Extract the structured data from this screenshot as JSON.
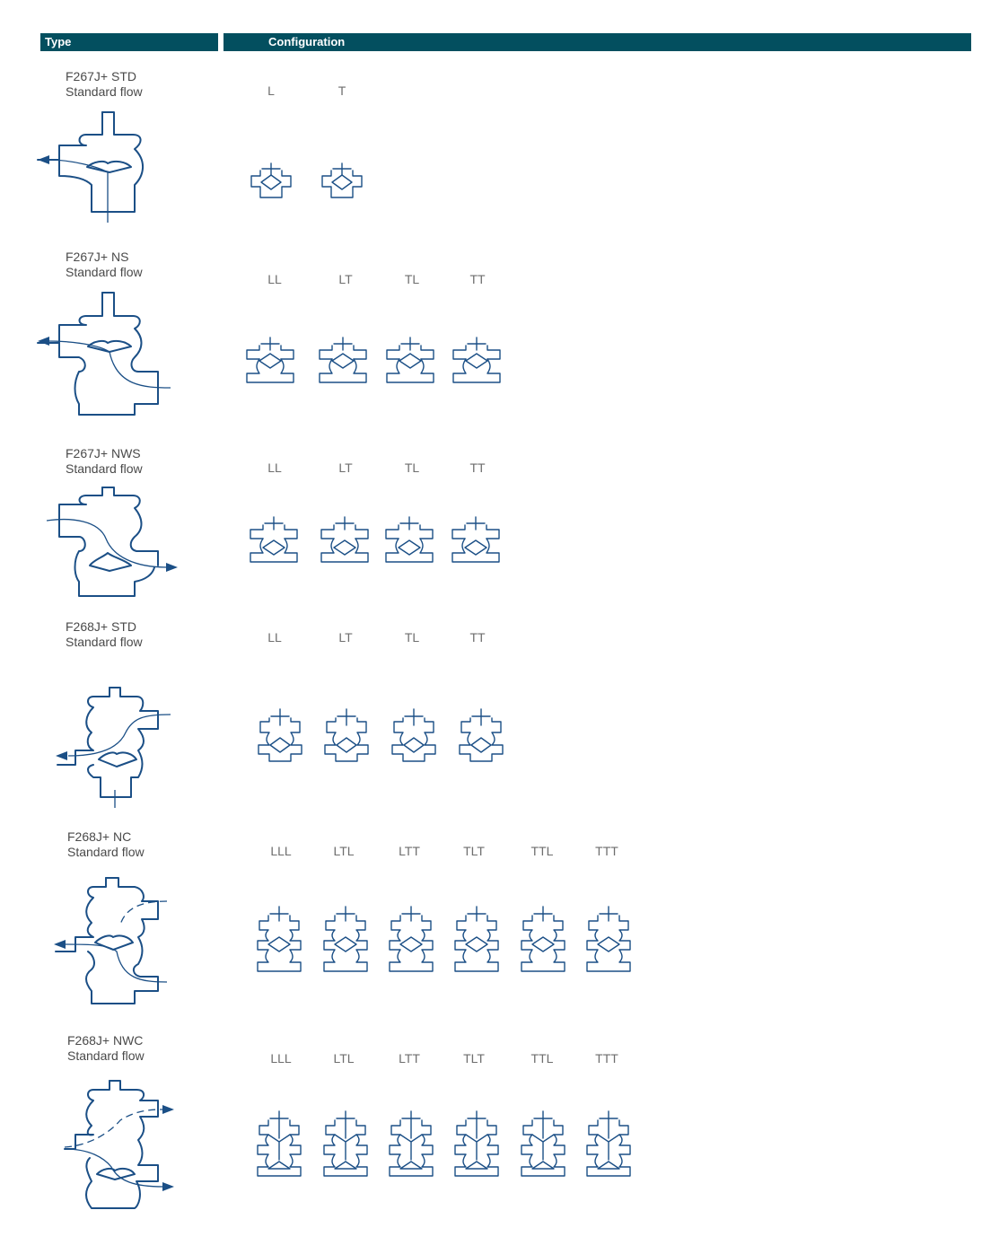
{
  "header": {
    "type": "Type",
    "configuration": "Configuration"
  },
  "colors": {
    "header_bg": "#034f5f",
    "line": "#1b4f86"
  },
  "rows": [
    {
      "model": "F267J+ STD",
      "flow": "Standard flow",
      "configs": [
        "L",
        "T"
      ]
    },
    {
      "model": "F267J+ NS",
      "flow": "Standard flow",
      "configs": [
        "LL",
        "LT",
        "TL",
        "TT"
      ]
    },
    {
      "model": "F267J+ NWS",
      "flow": "Standard flow",
      "configs": [
        "LL",
        "LT",
        "TL",
        "TT"
      ]
    },
    {
      "model": "F268J+ STD",
      "flow": "Standard flow",
      "configs": [
        "LL",
        "LT",
        "TL",
        "TT"
      ]
    },
    {
      "model": "F268J+ NC",
      "flow": "Standard flow",
      "configs": [
        "LLL",
        "LTL",
        "LTT",
        "TLT",
        "TTL",
        "TTT"
      ]
    },
    {
      "model": "F268J+ NWC",
      "flow": "Standard flow",
      "configs": [
        "LLL",
        "LTL",
        "LTT",
        "TLT",
        "TTL",
        "TTT"
      ]
    }
  ]
}
